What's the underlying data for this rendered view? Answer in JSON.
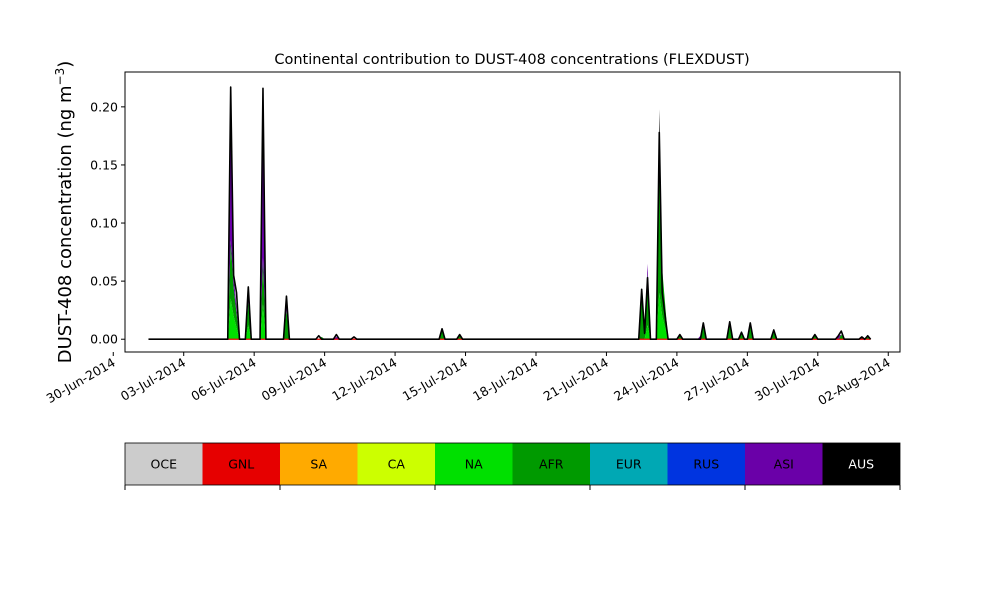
{
  "chart_data": {
    "type": "area",
    "stacked": true,
    "title": "Continental contribution to DUST-408 concentrations (FLEXDUST)",
    "ylabel_main": "DUST-408 concentration (ng m",
    "ylabel_sup": "−3",
    "ylabel_end": ")",
    "xlabel": "",
    "ylim": [
      -0.011,
      0.23
    ],
    "xlim": [
      "2014-06-30T12:00",
      "2014-08-02T12:00"
    ],
    "yticks": [
      0.0,
      0.05,
      0.1,
      0.15,
      0.2
    ],
    "ytick_labels": [
      "0.00",
      "0.05",
      "0.10",
      "0.15",
      "0.20"
    ],
    "xticks": [
      "2014-06-30",
      "2014-07-03",
      "2014-07-06",
      "2014-07-09",
      "2014-07-12",
      "2014-07-15",
      "2014-07-18",
      "2014-07-21",
      "2014-07-24",
      "2014-07-27",
      "2014-07-30",
      "2014-08-02"
    ],
    "xtick_labels": [
      "30-Jun-2014",
      "03-Jul-2014",
      "06-Jul-2014",
      "09-Jul-2014",
      "12-Jul-2014",
      "15-Jul-2014",
      "18-Jul-2014",
      "21-Jul-2014",
      "24-Jul-2014",
      "27-Jul-2014",
      "30-Jul-2014",
      "02-Aug-2014"
    ],
    "grid": false,
    "x_start": "2014-07-01T12:00",
    "x_end": "2014-08-01T06:00",
    "series": [
      {
        "name": "NA",
        "color": "#00e000",
        "values": [
          [
            "2014-07-04T21:00",
            0.0
          ],
          [
            "2014-07-05T00:00",
            0.035
          ],
          [
            "2014-07-05T03:00",
            0.02
          ],
          [
            "2014-07-05T09:00",
            0.0
          ],
          [
            "2014-07-05T15:00",
            0.0
          ],
          [
            "2014-07-05T18:00",
            0.012
          ],
          [
            "2014-07-05T21:00",
            0.0
          ],
          [
            "2014-07-06T06:00",
            0.0
          ],
          [
            "2014-07-06T09:00",
            0.03
          ],
          [
            "2014-07-06T12:00",
            0.0
          ],
          [
            "2014-07-22T15:00",
            0.0
          ],
          [
            "2014-07-22T18:00",
            0.012
          ],
          [
            "2014-07-22T21:00",
            0.0
          ],
          [
            "2014-07-23T03:00",
            0.0
          ],
          [
            "2014-07-23T06:00",
            0.04
          ],
          [
            "2014-07-23T09:00",
            0.02
          ],
          [
            "2014-07-23T15:00",
            0.0
          ]
        ]
      },
      {
        "name": "AFR",
        "color": "#009a00",
        "values": [
          [
            "2014-07-04T21:00",
            0.0
          ],
          [
            "2014-07-05T00:00",
            0.05
          ],
          [
            "2014-07-05T03:00",
            0.025
          ],
          [
            "2014-07-05T09:00",
            0.0
          ],
          [
            "2014-07-05T15:00",
            0.0
          ],
          [
            "2014-07-05T18:00",
            0.02
          ],
          [
            "2014-07-05T21:00",
            0.0
          ],
          [
            "2014-07-06T06:00",
            0.0
          ],
          [
            "2014-07-06T09:00",
            0.04
          ],
          [
            "2014-07-06T12:00",
            0.0
          ],
          [
            "2014-07-07T06:00",
            0.0
          ],
          [
            "2014-07-07T09:00",
            0.025
          ],
          [
            "2014-07-07T12:00",
            0.0
          ],
          [
            "2014-07-08T18:00",
            0.0
          ],
          [
            "2014-07-08T21:00",
            0.002
          ],
          [
            "2014-07-09T00:00",
            0.0
          ],
          [
            "2014-07-13T21:00",
            0.0
          ],
          [
            "2014-07-14T00:00",
            0.007
          ],
          [
            "2014-07-14T03:00",
            0.0
          ],
          [
            "2014-07-14T15:00",
            0.0
          ],
          [
            "2014-07-14T18:00",
            0.003
          ],
          [
            "2014-07-14T21:00",
            0.0
          ],
          [
            "2014-07-22T09:00",
            0.0
          ],
          [
            "2014-07-22T12:00",
            0.035
          ],
          [
            "2014-07-22T15:00",
            0.005
          ],
          [
            "2014-07-22T18:00",
            0.045
          ],
          [
            "2014-07-22T21:00",
            0.0
          ],
          [
            "2014-07-23T03:00",
            0.0
          ],
          [
            "2014-07-23T06:00",
            0.14
          ],
          [
            "2014-07-23T09:00",
            0.04
          ],
          [
            "2014-07-23T15:00",
            0.0
          ],
          [
            "2014-07-24T00:00",
            0.0
          ],
          [
            "2014-07-24T03:00",
            0.003
          ],
          [
            "2014-07-24T06:00",
            0.0
          ],
          [
            "2014-07-25T00:00",
            0.0
          ],
          [
            "2014-07-25T03:00",
            0.012
          ],
          [
            "2014-07-25T06:00",
            0.0
          ],
          [
            "2014-07-26T03:00",
            0.0
          ],
          [
            "2014-07-26T06:00",
            0.012
          ],
          [
            "2014-07-26T09:00",
            0.0
          ],
          [
            "2014-07-26T15:00",
            0.0
          ],
          [
            "2014-07-26T18:00",
            0.005
          ],
          [
            "2014-07-26T21:00",
            0.0
          ],
          [
            "2014-07-27T00:00",
            0.0
          ],
          [
            "2014-07-27T03:00",
            0.01
          ],
          [
            "2014-07-27T06:00",
            0.0
          ],
          [
            "2014-07-28T00:00",
            0.0
          ],
          [
            "2014-07-28T03:00",
            0.006
          ],
          [
            "2014-07-28T06:00",
            0.0
          ],
          [
            "2014-07-29T18:00",
            0.0
          ],
          [
            "2014-07-29T21:00",
            0.003
          ],
          [
            "2014-07-30T00:00",
            0.0
          ],
          [
            "2014-07-30T21:00",
            0.0
          ],
          [
            "2014-07-31T00:00",
            0.004
          ],
          [
            "2014-07-31T03:00",
            0.0
          ],
          [
            "2014-08-01T00:00",
            0.0
          ],
          [
            "2014-08-01T03:00",
            0.002
          ],
          [
            "2014-08-01T06:00",
            0.0
          ]
        ]
      },
      {
        "name": "ASI",
        "color": "#6a00a8",
        "values": [
          [
            "2014-07-04T21:00",
            0.0
          ],
          [
            "2014-07-05T00:00",
            0.125
          ],
          [
            "2014-07-05T03:00",
            0.01
          ],
          [
            "2014-07-05T09:00",
            0.0
          ],
          [
            "2014-07-05T15:00",
            0.0
          ],
          [
            "2014-07-05T18:00",
            0.01
          ],
          [
            "2014-07-05T21:00",
            0.0
          ],
          [
            "2014-07-06T06:00",
            0.0
          ],
          [
            "2014-07-06T09:00",
            0.14
          ],
          [
            "2014-07-06T12:00",
            0.0
          ],
          [
            "2014-07-07T06:00",
            0.0
          ],
          [
            "2014-07-07T09:00",
            0.01
          ],
          [
            "2014-07-07T12:00",
            0.0
          ],
          [
            "2014-07-09T09:00",
            0.0
          ],
          [
            "2014-07-09T12:00",
            0.002
          ],
          [
            "2014-07-09T15:00",
            0.0
          ],
          [
            "2014-07-22T15:00",
            0.0
          ],
          [
            "2014-07-22T18:00",
            0.008
          ],
          [
            "2014-07-22T21:00",
            0.0
          ],
          [
            "2014-07-24T21:00",
            0.0
          ],
          [
            "2014-07-25T00:00",
            0.003
          ],
          [
            "2014-07-25T03:00",
            0.0
          ],
          [
            "2014-07-26T03:00",
            0.0
          ],
          [
            "2014-07-26T06:00",
            0.004
          ],
          [
            "2014-07-26T09:00",
            0.0
          ],
          [
            "2014-07-30T18:00",
            0.0
          ],
          [
            "2014-07-30T21:00",
            0.003
          ],
          [
            "2014-07-31T00:00",
            0.0
          ]
        ]
      },
      {
        "name": "AUS",
        "color": "#000000",
        "values": [
          [
            "2014-07-05T00:00",
            0.0
          ],
          [
            "2014-07-05T03:00",
            0.0
          ],
          [
            "2014-07-22T09:00",
            0.0
          ],
          [
            "2014-07-22T12:00",
            0.008
          ],
          [
            "2014-07-22T15:00",
            0.0
          ],
          [
            "2014-07-23T03:00",
            0.0
          ],
          [
            "2014-07-23T06:00",
            0.018
          ],
          [
            "2014-07-23T09:00",
            0.0
          ],
          [
            "2014-07-31T18:00",
            0.0
          ],
          [
            "2014-07-31T21:00",
            0.001
          ],
          [
            "2014-08-01T00:00",
            0.0
          ]
        ]
      },
      {
        "name": "GNL",
        "color": "#e60000",
        "values": []
      }
    ],
    "total_outline": [
      [
        "2014-07-01T12:00",
        0.0
      ],
      [
        "2014-07-04T21:00",
        0.0
      ],
      [
        "2014-07-05T00:00",
        0.217
      ],
      [
        "2014-07-05T03:00",
        0.055
      ],
      [
        "2014-07-05T06:00",
        0.04
      ],
      [
        "2014-07-05T09:00",
        0.0
      ],
      [
        "2014-07-05T15:00",
        0.0
      ],
      [
        "2014-07-05T18:00",
        0.045
      ],
      [
        "2014-07-05T21:00",
        0.0
      ],
      [
        "2014-07-06T06:00",
        0.0
      ],
      [
        "2014-07-06T09:00",
        0.216
      ],
      [
        "2014-07-06T12:00",
        0.0
      ],
      [
        "2014-07-07T06:00",
        0.0
      ],
      [
        "2014-07-07T09:00",
        0.037
      ],
      [
        "2014-07-07T12:00",
        0.0
      ],
      [
        "2014-07-08T15:00",
        0.0
      ],
      [
        "2014-07-08T18:00",
        0.003
      ],
      [
        "2014-07-08T21:00",
        0.0
      ],
      [
        "2014-07-09T09:00",
        0.0
      ],
      [
        "2014-07-09T12:00",
        0.004
      ],
      [
        "2014-07-09T15:00",
        0.0
      ],
      [
        "2014-07-10T03:00",
        0.0
      ],
      [
        "2014-07-10T06:00",
        0.002
      ],
      [
        "2014-07-10T09:00",
        0.0
      ],
      [
        "2014-07-13T21:00",
        0.0
      ],
      [
        "2014-07-14T00:00",
        0.009
      ],
      [
        "2014-07-14T03:00",
        0.0
      ],
      [
        "2014-07-14T15:00",
        0.0
      ],
      [
        "2014-07-14T18:00",
        0.004
      ],
      [
        "2014-07-14T21:00",
        0.0
      ],
      [
        "2014-07-22T09:00",
        0.0
      ],
      [
        "2014-07-22T12:00",
        0.043
      ],
      [
        "2014-07-22T15:00",
        0.005
      ],
      [
        "2014-07-22T18:00",
        0.053
      ],
      [
        "2014-07-22T21:00",
        0.0
      ],
      [
        "2014-07-23T03:00",
        0.0
      ],
      [
        "2014-07-23T06:00",
        0.178
      ],
      [
        "2014-07-23T09:00",
        0.04
      ],
      [
        "2014-07-23T12:00",
        0.02
      ],
      [
        "2014-07-23T15:00",
        0.0
      ],
      [
        "2014-07-24T00:00",
        0.0
      ],
      [
        "2014-07-24T03:00",
        0.004
      ],
      [
        "2014-07-24T06:00",
        0.0
      ],
      [
        "2014-07-25T00:00",
        0.0
      ],
      [
        "2014-07-25T03:00",
        0.014
      ],
      [
        "2014-07-25T06:00",
        0.0
      ],
      [
        "2014-07-26T03:00",
        0.0
      ],
      [
        "2014-07-26T06:00",
        0.015
      ],
      [
        "2014-07-26T09:00",
        0.0
      ],
      [
        "2014-07-26T15:00",
        0.0
      ],
      [
        "2014-07-26T18:00",
        0.006
      ],
      [
        "2014-07-26T21:00",
        0.0
      ],
      [
        "2014-07-27T00:00",
        0.0
      ],
      [
        "2014-07-27T03:00",
        0.014
      ],
      [
        "2014-07-27T06:00",
        0.0
      ],
      [
        "2014-07-28T00:00",
        0.0
      ],
      [
        "2014-07-28T03:00",
        0.008
      ],
      [
        "2014-07-28T06:00",
        0.0
      ],
      [
        "2014-07-29T18:00",
        0.0
      ],
      [
        "2014-07-29T21:00",
        0.004
      ],
      [
        "2014-07-30T00:00",
        0.0
      ],
      [
        "2014-07-30T18:00",
        0.0
      ],
      [
        "2014-07-30T21:00",
        0.003
      ],
      [
        "2014-07-31T00:00",
        0.007
      ],
      [
        "2014-07-31T03:00",
        0.0
      ],
      [
        "2014-07-31T18:00",
        0.0
      ],
      [
        "2014-07-31T21:00",
        0.002
      ],
      [
        "2014-08-01T00:00",
        0.0
      ],
      [
        "2014-08-01T03:00",
        0.003
      ],
      [
        "2014-08-01T06:00",
        0.0
      ]
    ],
    "baseline_color": "#e60000"
  },
  "legend": {
    "position": "bottom",
    "items": [
      {
        "label": "OCE",
        "color": "#cccccc",
        "text_color": "#000000"
      },
      {
        "label": "GNL",
        "color": "#e60000",
        "text_color": "#000000"
      },
      {
        "label": "SA",
        "color": "#ffaa00",
        "text_color": "#000000"
      },
      {
        "label": "CA",
        "color": "#ccff00",
        "text_color": "#000000"
      },
      {
        "label": "NA",
        "color": "#00e000",
        "text_color": "#000000"
      },
      {
        "label": "AFR",
        "color": "#009a00",
        "text_color": "#000000"
      },
      {
        "label": "EUR",
        "color": "#00a8b4",
        "text_color": "#000000"
      },
      {
        "label": "RUS",
        "color": "#0034e0",
        "text_color": "#000000"
      },
      {
        "label": "ASI",
        "color": "#6a00a8",
        "text_color": "#000000"
      },
      {
        "label": "AUS",
        "color": "#000000",
        "text_color": "#ffffff"
      }
    ]
  }
}
